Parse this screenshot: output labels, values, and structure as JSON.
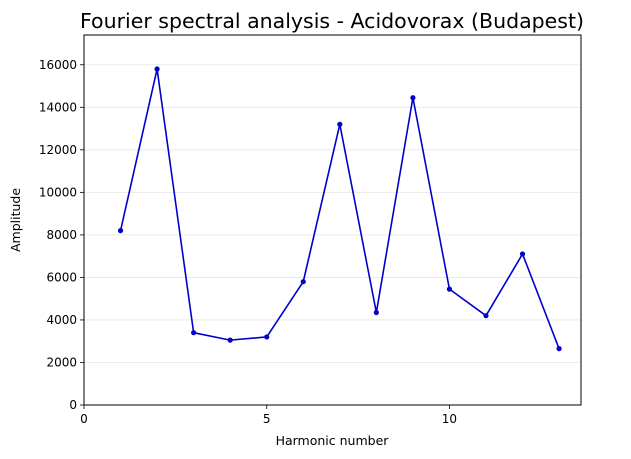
{
  "chart_data": {
    "type": "line",
    "title": "Fourier spectral analysis - Acidovorax (Budapest)",
    "xlabel": "Harmonic number",
    "ylabel": "Amplitude",
    "xlim": [
      0,
      13.6
    ],
    "ylim": [
      0,
      17400
    ],
    "xticks": [
      0,
      5,
      10
    ],
    "yticks": [
      0,
      2000,
      4000,
      6000,
      8000,
      10000,
      12000,
      14000,
      16000
    ],
    "grid": "horizontal",
    "series": [
      {
        "color": "#0000cc",
        "marker": "dot",
        "x": [
          1,
          2,
          3,
          4,
          5,
          6,
          7,
          8,
          9,
          10,
          11,
          12,
          13
        ],
        "y": [
          8200,
          15800,
          3400,
          3050,
          3200,
          5800,
          13200,
          4350,
          14450,
          5450,
          4200,
          7100,
          2650
        ]
      }
    ]
  }
}
